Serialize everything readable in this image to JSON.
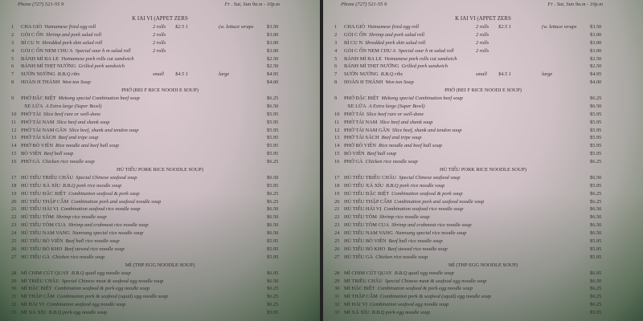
{
  "menu": {
    "phone": "Phone (727) 521-55 9",
    "hours": "Fr . Sat, Sun 9a.m - 10p.m",
    "appetizers_title": "K IAI VI (APPET ZERS",
    "rows": [
      {
        "num": "1",
        "name": "CHA GIÒ",
        "desc": "Vietnamese fried egg roll",
        "qty": "2 rolls",
        "x1": "$2.5 1",
        "x2": "(w. lettuce wraps",
        "price": "$3.50"
      },
      {
        "num": "2",
        "name": "GỎI C ỐN",
        "desc": "Shrimp and pork salad roll",
        "qty": "2 rolls",
        "price": "$3.00"
      },
      {
        "num": "3",
        "name": "BÌ CU N",
        "desc": "Shredded pork skin salad roll",
        "qty": "2 rolls",
        "price": "$3.00"
      },
      {
        "num": "4",
        "name": "GỎI C ỐN NEM CHU A",
        "desc": "Special sour h m salad roll",
        "qty": "2 rolls",
        "price": "$3.00"
      },
      {
        "num": "5",
        "name": "BÁNH MÌ BA LE",
        "desc": "Vietnamese pork rolls cut sandwich",
        "price": "$2.50"
      },
      {
        "num": "6",
        "name": "BÁNH MÌ THỊT NƯỚNG",
        "desc": "Grilled pork sandwich",
        "price": "$2.50"
      },
      {
        "num": "7",
        "name": "SƯỜN NƯỚNG",
        "desc": "B.B.Q ribs",
        "qty": "small",
        "x1": "$4.5 1",
        "x2": "large",
        "price": "$4.95"
      },
      {
        "num": "8",
        "name": "HOÀN H THÁNH",
        "desc": "Won ton Soup",
        "price": "$4.00"
      },
      {
        "section": "PHỞ (BEI F RICE NOODI E SOUP)"
      },
      {
        "num": "9",
        "name": "PHỞ ĐẶC BIỆT",
        "desc": "Mekong special Combination beef soup",
        "price": "$6.25"
      },
      {
        "sub": true,
        "name": "XE LỬA",
        "desc": "A Extra large (Super Bowl)",
        "price": "$6.50"
      },
      {
        "num": "10",
        "name": "PHỞ TÁI",
        "desc": "Slice beef rare or well-done",
        "price": "$5.95"
      },
      {
        "num": "11",
        "name": "PHỞ TÁI NAM",
        "desc": "Slice beef and shank soup",
        "price": "$5.95"
      },
      {
        "num": "12",
        "name": "PHỞ TÁI NAM GÂN",
        "desc": "Slice beef, shank and tendon soup",
        "price": "$5.95"
      },
      {
        "num": "13",
        "name": "PHỞ TÁI SÁCH",
        "desc": "Beef and tripe soup",
        "price": "$5.95"
      },
      {
        "num": "14",
        "name": "PHỞ BÒ VIÊN",
        "desc": "Rice noodle and beef ball soup",
        "price": "$5.95"
      },
      {
        "num": "15",
        "name": "BÒ VIÊN",
        "desc": "Beef ball soup",
        "price": "$5.95"
      },
      {
        "num": "16",
        "name": "PHỞ GÀ",
        "desc": "Chicken rice noodle soup",
        "price": "$6.25"
      },
      {
        "section": "HỦ TIẾU  PORK RICE NOODLE SOUP)"
      },
      {
        "num": "17",
        "name": "HỦ TIẾU TRIỀU CHÂU",
        "desc": "Special Chinese seafood soup",
        "price": "$6.50"
      },
      {
        "num": "18",
        "name": "HỦ TIẾU XÁ XÍU",
        "desc": "B.B.Q pork rice noodle soup",
        "price": "$5.95"
      },
      {
        "num": "19",
        "name": "HỦ TIẾU ĐẶC BIỆT",
        "desc": "Combination seafood & pork soup",
        "price": "$6.25"
      },
      {
        "num": "20",
        "name": "HỦ TIẾU THẬP CẨM",
        "desc": "Combination pork and seafood noodle soup",
        "price": "$6.25"
      },
      {
        "num": "21",
        "name": "HỦ TIẾU HẢI VỊ",
        "desc": "Combination seafood rice noodle soup",
        "price": "$6.50"
      },
      {
        "num": "22",
        "name": "HỦ TIẾU TÔM",
        "desc": "Shrimp rice noodle soup",
        "price": "$6.50"
      },
      {
        "num": "23",
        "name": "HỦ TIẾU TÔM CUA",
        "desc": "Shrimp and crabmeat rice noodle soup",
        "price": "$6.50"
      },
      {
        "num": "24",
        "name": "HỦ TIẾU NAM VANG",
        "desc": "Namvang special rice noodle soup",
        "price": "$6.50"
      },
      {
        "num": "25",
        "name": "HỦ TIẾU BÒ VIÊN",
        "desc": "Beef ball rice noodle soup",
        "price": "$5.95"
      },
      {
        "num": "26",
        "name": "HỦ TIẾU BÒ KHO",
        "desc": "Beef stewed rice noodle soup",
        "price": "$5.95"
      },
      {
        "num": "27",
        "name": "HỦ TIẾU GÀ",
        "desc": "Chicken rice noodle soup",
        "price": "$5.95"
      },
      {
        "section": "MÌ  (THP  EGG NOODLE SOUP)"
      },
      {
        "num": "28",
        "name": "MÌ CHIM CÚT QUAY",
        "desc": "B.B.Q quail egg noodle soup",
        "price": "$6.95"
      },
      {
        "num": "29",
        "name": "MÌ TRIỀU CHÂU",
        "desc": "Special Chinese meat & seafood egg noodle soup",
        "price": "$6.50"
      },
      {
        "num": "30",
        "name": "MÌ ĐẶC BIỆT",
        "desc": "Combination seafood & pork egg noodle soup",
        "price": "$6.25"
      },
      {
        "num": "31",
        "name": "MÌ THẬP CẨM",
        "desc": "Combination pork & seafood (squid) egg noodle soup",
        "price": "$6.25"
      },
      {
        "num": "32",
        "name": "MÌ HẢI VỊ",
        "desc": "Combination seafood egg noodle soup",
        "price": "$6.25"
      },
      {
        "num": "33",
        "name": "MÌ XÁ XÍU",
        "desc": "B.B.Q pork egg noodle soup",
        "price": "$5.95"
      }
    ]
  }
}
